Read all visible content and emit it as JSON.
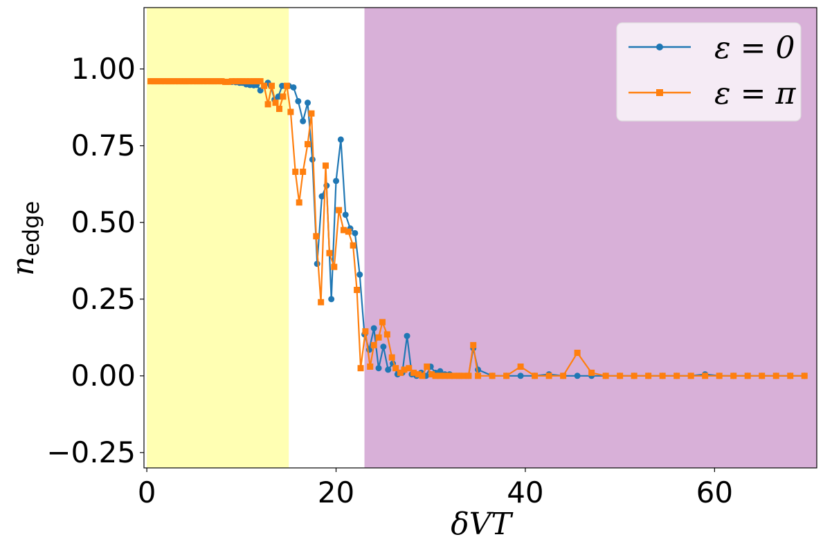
{
  "chart_data": {
    "type": "line",
    "xlabel": "δVT",
    "ylabel": "n",
    "ylabel_sub": "edge",
    "xlim": [
      -0.3,
      70.8
    ],
    "ylim": [
      -0.3,
      1.2
    ],
    "xticks": [
      0,
      20,
      40,
      60
    ],
    "xtick_labels": [
      "0",
      "20",
      "40",
      "60"
    ],
    "yticks": [
      -0.25,
      0,
      0.25,
      0.5,
      0.75,
      1.0
    ],
    "ytick_labels": [
      "−0.25",
      "0.00",
      "0.25",
      "0.50",
      "0.75",
      "1.00"
    ],
    "grid": false,
    "legend_position": "top-right",
    "regions": [
      {
        "x0": 0,
        "x1": 15,
        "color": "#ffffb3"
      },
      {
        "x0": 23,
        "x1": 70.8,
        "color": "#d8b0d8"
      }
    ],
    "series": [
      {
        "name": "ε = 0",
        "color": "#1f77b4",
        "marker": "circle",
        "x": [
          0.4,
          0.8,
          1.1,
          1.5,
          1.9,
          2.3,
          2.6,
          3.0,
          3.4,
          3.8,
          4.1,
          4.5,
          4.9,
          5.3,
          5.6,
          6.0,
          6.4,
          6.8,
          7.1,
          7.5,
          7.9,
          8.3,
          8.6,
          9.0,
          9.4,
          9.8,
          10.1,
          10.5,
          10.9,
          11.3,
          11.6,
          12.0,
          12.4,
          12.8,
          13.1,
          13.5,
          13.9,
          14.3,
          14.6,
          15.0,
          15.5,
          16.0,
          16.5,
          17.0,
          17.5,
          18.0,
          18.5,
          19.0,
          19.5,
          20.0,
          20.5,
          21.0,
          21.5,
          22.0,
          22.5,
          23.0,
          23.5,
          24.0,
          24.5,
          25.0,
          25.5,
          26.0,
          26.5,
          27.0,
          27.5,
          28.0,
          28.5,
          29.0,
          29.5,
          30.0,
          30.5,
          31.0,
          31.5,
          32.0,
          33.0,
          34.0,
          34.5,
          35.0,
          36.5,
          38.0,
          39.5,
          41.0,
          42.5,
          44.0,
          45.5,
          47.0,
          48.5,
          50.0,
          51.5,
          53.0,
          54.5,
          56.0,
          57.5,
          59.0,
          60.5,
          62.0,
          63.5,
          65.0,
          66.5,
          68.0,
          69.5
        ],
        "y": [
          0.96,
          0.96,
          0.96,
          0.96,
          0.96,
          0.96,
          0.96,
          0.96,
          0.96,
          0.96,
          0.96,
          0.96,
          0.96,
          0.96,
          0.96,
          0.96,
          0.96,
          0.96,
          0.96,
          0.96,
          0.96,
          0.958,
          0.958,
          0.958,
          0.957,
          0.955,
          0.955,
          0.95,
          0.948,
          0.947,
          0.948,
          0.93,
          0.945,
          0.955,
          0.945,
          0.9,
          0.91,
          0.945,
          0.945,
          0.945,
          0.94,
          0.895,
          0.83,
          0.89,
          0.705,
          0.365,
          0.585,
          0.62,
          0.25,
          0.635,
          0.77,
          0.525,
          0.48,
          0.465,
          0.33,
          0.135,
          0.085,
          0.155,
          0.025,
          0.095,
          0.02,
          0.04,
          0.005,
          0.01,
          0.13,
          0.005,
          0.0,
          0.01,
          0.0,
          0.03,
          0.01,
          0.015,
          0.005,
          0.005,
          0.0,
          0.0,
          0.09,
          0.02,
          0.0,
          0.0,
          0.0,
          0.0,
          0.005,
          0.0,
          0.0,
          0.0,
          0.0,
          0.0,
          0.0,
          0.0,
          0.0,
          0.0,
          0.0,
          0.005,
          0.0,
          0.0,
          0.0,
          0.0,
          0.0,
          0.0,
          0.0
        ]
      },
      {
        "name": "ε = π",
        "color": "#ff7f0e",
        "marker": "square",
        "x": [
          0.4,
          0.8,
          1.1,
          1.5,
          1.9,
          2.3,
          2.6,
          3.0,
          3.4,
          3.8,
          4.1,
          4.5,
          4.9,
          5.3,
          5.6,
          6.0,
          6.4,
          6.8,
          7.1,
          7.5,
          7.9,
          8.3,
          8.6,
          9.0,
          9.4,
          9.8,
          10.1,
          10.5,
          10.9,
          11.3,
          11.6,
          12.0,
          12.4,
          12.8,
          13.2,
          13.6,
          14.0,
          14.4,
          14.8,
          15.2,
          15.7,
          16.1,
          16.5,
          17.0,
          17.4,
          17.9,
          18.4,
          18.9,
          19.3,
          19.8,
          20.3,
          20.8,
          21.3,
          21.8,
          22.2,
          22.6,
          23.1,
          23.6,
          24.0,
          24.5,
          24.9,
          25.4,
          25.9,
          26.3,
          26.8,
          27.2,
          27.7,
          28.2,
          28.7,
          29.1,
          29.6,
          30.1,
          30.5,
          31.0,
          31.5,
          32.0,
          32.5,
          33.0,
          33.5,
          34.0,
          34.5,
          35.0,
          36.5,
          38.0,
          39.5,
          41.0,
          42.5,
          44.0,
          45.5,
          47.0,
          48.5,
          50.0,
          51.5,
          53.0,
          54.5,
          56.0,
          57.5,
          59.0,
          60.5,
          62.0,
          63.5,
          65.0,
          66.5,
          68.0,
          69.5
        ],
        "y": [
          0.96,
          0.96,
          0.96,
          0.96,
          0.96,
          0.96,
          0.96,
          0.96,
          0.96,
          0.96,
          0.96,
          0.96,
          0.96,
          0.96,
          0.96,
          0.96,
          0.96,
          0.96,
          0.96,
          0.96,
          0.96,
          0.958,
          0.958,
          0.96,
          0.96,
          0.96,
          0.96,
          0.96,
          0.96,
          0.96,
          0.96,
          0.96,
          0.945,
          0.885,
          0.945,
          0.89,
          0.87,
          0.91,
          0.945,
          0.86,
          0.665,
          0.565,
          0.665,
          0.755,
          0.855,
          0.455,
          0.24,
          0.685,
          0.4,
          0.355,
          0.54,
          0.475,
          0.47,
          0.425,
          0.28,
          0.025,
          0.145,
          0.03,
          0.1,
          0.125,
          0.175,
          0.135,
          0.06,
          0.025,
          0.01,
          0.02,
          0.025,
          0.01,
          0.005,
          0.0,
          0.03,
          0.005,
          0.0,
          0.0,
          0.0,
          0.0,
          0.0,
          0.0,
          0.0,
          0.0,
          0.1,
          0.0,
          0.0,
          0.0,
          0.03,
          0.0,
          0.0,
          0.0,
          0.075,
          0.01,
          0.0,
          0.0,
          0.0,
          0.0,
          0.0,
          0.0,
          0.0,
          0.0,
          0.0,
          0.0,
          0.0,
          0.0,
          0.0,
          0.0,
          0.0
        ]
      }
    ]
  }
}
